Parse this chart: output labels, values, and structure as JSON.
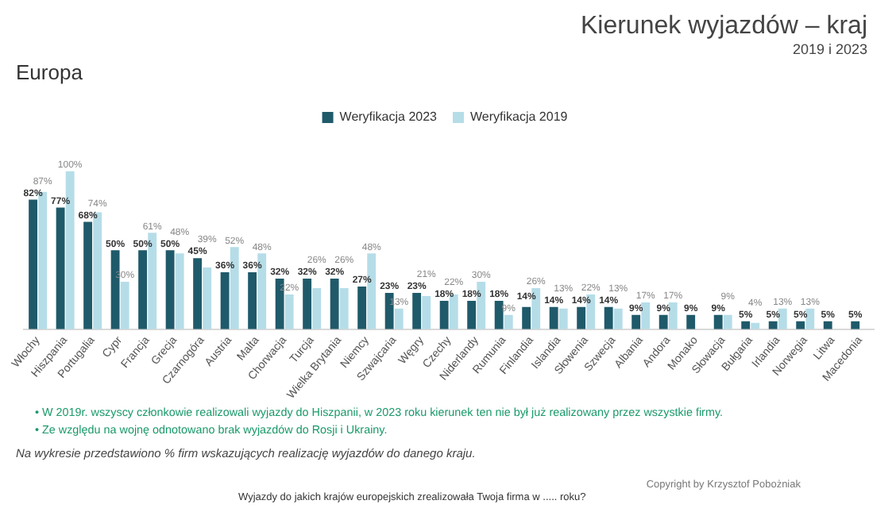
{
  "chart_data": {
    "type": "bar",
    "title": "Kierunek wyjazdów – kraj",
    "subtitle": "2019 i 2023",
    "categories": [
      "Włochy",
      "Hiszpania",
      "Portugalia",
      "Cypr",
      "Francja",
      "Grecja",
      "Czarnogóra",
      "Austria",
      "Malta",
      "Chorwacja",
      "Turcja",
      "Wielka Brytania",
      "Niemcy",
      "Szwajcaria",
      "Węgry",
      "Czechy",
      "Niderlandy",
      "Rumunia",
      "Finlandia",
      "Islandia",
      "Słowenia",
      "Szwecja",
      "Albania",
      "Andora",
      "Monako",
      "Słowacja",
      "Bułgaria",
      "Irlandia",
      "Norwegia",
      "Litwa",
      "Macedonia"
    ],
    "series": [
      {
        "name": "Weryfikacja 2023",
        "color": "#1f5a6a",
        "values": [
          82,
          77,
          68,
          50,
          50,
          50,
          45,
          36,
          36,
          32,
          32,
          32,
          27,
          23,
          23,
          18,
          18,
          18,
          14,
          14,
          14,
          14,
          9,
          9,
          9,
          9,
          5,
          5,
          5,
          5,
          5
        ],
        "value_labels": [
          "82%",
          "77%",
          "68%",
          "50%",
          "50%",
          "50%",
          "45%",
          "36%",
          "36%",
          "32%",
          "32%",
          "32%",
          "27%",
          "23%",
          "23%",
          "18%",
          "18%",
          "18%",
          "14%",
          "14%",
          "14%",
          "14%",
          "9%",
          "9%",
          "9%",
          "9%",
          "5%",
          "5%",
          "5%",
          "5%",
          "5%"
        ]
      },
      {
        "name": "Weryfikacja 2019",
        "color": "#b5dde8",
        "values": [
          87,
          100,
          74,
          30,
          61,
          48,
          39,
          52,
          48,
          22,
          26,
          26,
          48,
          13,
          21,
          22,
          30,
          9,
          26,
          13,
          22,
          13,
          17,
          17,
          null,
          9,
          4,
          13,
          13,
          null,
          null
        ],
        "value_labels": [
          "87%",
          "100%",
          "74%",
          "30%",
          "61%",
          "48%",
          "39%",
          "52%",
          "48%",
          "22%",
          "26%",
          "26%",
          "48%",
          "13%",
          "21%",
          "22%",
          "30%",
          "9%",
          "26%",
          "13%",
          "22%",
          "13%",
          "17%",
          "17%",
          null,
          "9%",
          "4%",
          "13%",
          "13%",
          null,
          null
        ]
      }
    ],
    "legend": "top",
    "grid": false,
    "annotations": [
      "Europa",
      "• W 2019r. wszyscy członkowie realizowali wyjazdy do Hiszpanii, w 2023 roku kierunek ten nie był już realizowany przez wszystkie firmy.",
      "• Ze względu na wojnę odnotowano brak wyjazdów do Rosji i Ukrainy.",
      "Na wykresie przedstawiono % firm wskazujących realizację wyjazdów do danego kraju.",
      "Copyright by Krzysztof Pobożniak",
      "Wyjazdy do jakich krajów europejskich zrealizowała Twoja firma w ..... roku?"
    ]
  }
}
